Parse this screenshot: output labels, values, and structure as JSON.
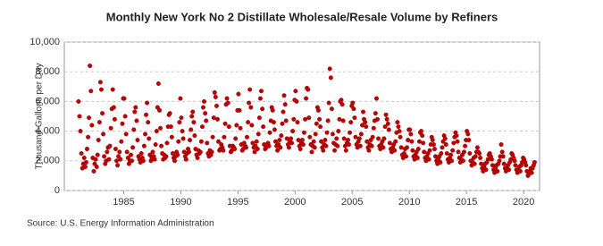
{
  "chart_data": {
    "type": "scatter",
    "title": "Monthly New York No 2 Distillate Wholesale/Resale Volume by Refiners",
    "y_label": "Thousand Gallons per Day",
    "source": "Source: U.S. Energy Information Administration",
    "color": "#c00000",
    "xlim": [
      1979.8,
      2021.4
    ],
    "xticks": [
      1985,
      1990,
      1995,
      2000,
      2005,
      2010,
      2015,
      2020
    ],
    "ylim": [
      0,
      10000
    ],
    "yticks": [
      0,
      {
        "value": 2000,
        "label": "2,000"
      },
      {
        "value": 4000,
        "label": "4,000"
      },
      {
        "value": 6000,
        "label": "6,000"
      },
      {
        "value": 8000,
        "label": "8,000"
      },
      {
        "value": 10000,
        "label": "10,000"
      }
    ],
    "grid": true,
    "x": [
      1981.04,
      1981.13,
      1981.21,
      1981.29,
      1981.38,
      1981.46,
      1981.54,
      1981.63,
      1981.71,
      1981.79,
      1981.88,
      1981.96,
      1982.04,
      1982.13,
      1982.21,
      1982.29,
      1982.38,
      1982.46,
      1982.54,
      1982.63,
      1982.71,
      1982.79,
      1982.88,
      1982.96,
      1983.04,
      1983.13,
      1983.21,
      1983.29,
      1983.38,
      1983.46,
      1983.54,
      1983.63,
      1983.71,
      1983.79,
      1983.88,
      1983.96,
      1984.04,
      1984.13,
      1984.21,
      1984.29,
      1984.38,
      1984.46,
      1984.54,
      1984.63,
      1984.71,
      1984.79,
      1984.88,
      1984.96,
      1985.04,
      1985.13,
      1985.21,
      1985.29,
      1985.38,
      1985.46,
      1985.54,
      1985.63,
      1985.71,
      1985.79,
      1985.88,
      1985.96,
      1986.04,
      1986.13,
      1986.21,
      1986.29,
      1986.38,
      1986.46,
      1986.54,
      1986.63,
      1986.71,
      1986.79,
      1986.88,
      1986.96,
      1987.04,
      1987.13,
      1987.21,
      1987.29,
      1987.38,
      1987.46,
      1987.54,
      1987.63,
      1987.71,
      1987.79,
      1987.88,
      1987.96,
      1988.04,
      1988.13,
      1988.21,
      1988.29,
      1988.38,
      1988.46,
      1988.54,
      1988.63,
      1988.71,
      1988.79,
      1988.88,
      1988.96,
      1989.04,
      1989.13,
      1989.21,
      1989.29,
      1989.38,
      1989.46,
      1989.54,
      1989.63,
      1989.71,
      1989.79,
      1989.88,
      1989.96,
      1990.04,
      1990.13,
      1990.21,
      1990.29,
      1990.38,
      1990.46,
      1990.54,
      1990.63,
      1990.71,
      1990.79,
      1990.88,
      1990.96,
      1991.04,
      1991.13,
      1991.21,
      1991.29,
      1991.38,
      1991.46,
      1991.54,
      1991.63,
      1991.71,
      1991.79,
      1991.88,
      1991.96,
      1992.04,
      1992.13,
      1992.21,
      1992.29,
      1992.38,
      1992.46,
      1992.54,
      1992.63,
      1992.71,
      1992.79,
      1992.88,
      1992.96,
      1993.04,
      1993.13,
      1993.21,
      1993.29,
      1993.38,
      1993.46,
      1993.54,
      1993.63,
      1993.71,
      1993.79,
      1993.88,
      1993.96,
      1994.04,
      1994.13,
      1994.21,
      1994.29,
      1994.38,
      1994.46,
      1994.54,
      1994.63,
      1994.71,
      1994.79,
      1994.88,
      1994.96,
      1995.04,
      1995.13,
      1995.21,
      1995.29,
      1995.38,
      1995.46,
      1995.54,
      1995.63,
      1995.71,
      1995.79,
      1995.88,
      1995.96,
      1996.04,
      1996.13,
      1996.21,
      1996.29,
      1996.38,
      1996.46,
      1996.54,
      1996.63,
      1996.71,
      1996.79,
      1996.88,
      1996.96,
      1997.04,
      1997.13,
      1997.21,
      1997.29,
      1997.38,
      1997.46,
      1997.54,
      1997.63,
      1997.71,
      1997.79,
      1997.88,
      1997.96,
      1998.04,
      1998.13,
      1998.21,
      1998.29,
      1998.38,
      1998.46,
      1998.54,
      1998.63,
      1998.71,
      1998.79,
      1998.88,
      1998.96,
      1999.04,
      1999.13,
      1999.21,
      1999.29,
      1999.38,
      1999.46,
      1999.54,
      1999.63,
      1999.71,
      1999.79,
      1999.88,
      1999.96,
      2000.04,
      2000.13,
      2000.21,
      2000.29,
      2000.38,
      2000.46,
      2000.54,
      2000.63,
      2000.71,
      2000.79,
      2000.88,
      2000.96,
      2001.04,
      2001.13,
      2001.21,
      2001.29,
      2001.38,
      2001.46,
      2001.54,
      2001.63,
      2001.71,
      2001.79,
      2001.88,
      2001.96,
      2002.04,
      2002.13,
      2002.21,
      2002.29,
      2002.38,
      2002.46,
      2002.54,
      2002.63,
      2002.71,
      2002.79,
      2002.88,
      2002.96,
      2003.04,
      2003.13,
      2003.21,
      2003.29,
      2003.38,
      2003.46,
      2003.54,
      2003.63,
      2003.71,
      2003.79,
      2003.88,
      2003.96,
      2004.04,
      2004.13,
      2004.21,
      2004.29,
      2004.38,
      2004.46,
      2004.54,
      2004.63,
      2004.71,
      2004.79,
      2004.88,
      2004.96,
      2005.04,
      2005.13,
      2005.21,
      2005.29,
      2005.38,
      2005.46,
      2005.54,
      2005.63,
      2005.71,
      2005.79,
      2005.88,
      2005.96,
      2006.04,
      2006.13,
      2006.21,
      2006.29,
      2006.38,
      2006.46,
      2006.54,
      2006.63,
      2006.71,
      2006.79,
      2006.88,
      2006.96,
      2007.04,
      2007.13,
      2007.21,
      2007.29,
      2007.38,
      2007.46,
      2007.54,
      2007.63,
      2007.71,
      2007.79,
      2007.88,
      2007.96,
      2008.04,
      2008.13,
      2008.21,
      2008.29,
      2008.38,
      2008.46,
      2008.54,
      2008.63,
      2008.71,
      2008.79,
      2008.88,
      2008.96,
      2009.04,
      2009.13,
      2009.21,
      2009.29,
      2009.38,
      2009.46,
      2009.54,
      2009.63,
      2009.71,
      2009.79,
      2009.88,
      2009.96,
      2010.04,
      2010.13,
      2010.21,
      2010.29,
      2010.38,
      2010.46,
      2010.54,
      2010.63,
      2010.71,
      2010.79,
      2010.88,
      2010.96,
      2011.04,
      2011.13,
      2011.21,
      2011.29,
      2011.38,
      2011.46,
      2011.54,
      2011.63,
      2011.71,
      2011.79,
      2011.88,
      2011.96,
      2012.04,
      2012.13,
      2012.21,
      2012.29,
      2012.38,
      2012.46,
      2012.54,
      2012.63,
      2012.71,
      2012.79,
      2012.88,
      2012.96,
      2013.04,
      2013.13,
      2013.21,
      2013.29,
      2013.38,
      2013.46,
      2013.54,
      2013.63,
      2013.71,
      2013.79,
      2013.88,
      2013.96,
      2014.04,
      2014.13,
      2014.21,
      2014.29,
      2014.38,
      2014.46,
      2014.54,
      2014.63,
      2014.71,
      2014.79,
      2014.88,
      2014.96,
      2015.04,
      2015.13,
      2015.21,
      2015.29,
      2015.38,
      2015.46,
      2015.54,
      2015.63,
      2015.71,
      2015.79,
      2015.88,
      2015.96,
      2016.04,
      2016.13,
      2016.21,
      2016.29,
      2016.38,
      2016.46,
      2016.54,
      2016.63,
      2016.71,
      2016.79,
      2016.88,
      2016.96,
      2017.04,
      2017.13,
      2017.21,
      2017.29,
      2017.38,
      2017.46,
      2017.54,
      2017.63,
      2017.71,
      2017.79,
      2017.88,
      2017.96,
      2018.04,
      2018.13,
      2018.21,
      2018.29,
      2018.38,
      2018.46,
      2018.54,
      2018.63,
      2018.71,
      2018.79,
      2018.88,
      2018.96,
      2019.04,
      2019.13,
      2019.21,
      2019.29,
      2019.38,
      2019.46,
      2019.54,
      2019.63,
      2019.71,
      2019.79,
      2019.88,
      2019.96,
      2020.04,
      2020.13,
      2020.21,
      2020.29,
      2020.38,
      2020.46,
      2020.54,
      2020.63,
      2020.71,
      2020.79,
      2020.88,
      2020.96
    ],
    "values": [
      6000,
      5000,
      4000,
      2500,
      1500,
      1800,
      2200,
      1600,
      1900,
      2800,
      3600,
      4900,
      8400,
      6700,
      4400,
      2200,
      1300,
      1800,
      2100,
      1600,
      2400,
      3400,
      4600,
      7300,
      6800,
      5200,
      3800,
      2300,
      1800,
      2000,
      2600,
      2900,
      2100,
      3000,
      4200,
      5500,
      6800,
      5600,
      4800,
      2800,
      2000,
      1700,
      2300,
      2600,
      2100,
      3300,
      4500,
      6200,
      6200,
      5000,
      3800,
      2600,
      2200,
      1800,
      2000,
      2400,
      2000,
      2900,
      4100,
      5300,
      5600,
      4700,
      3400,
      2300,
      2100,
      1900,
      2500,
      2200,
      2000,
      3000,
      3800,
      5100,
      5900,
      4600,
      3500,
      2400,
      2000,
      2200,
      2600,
      2300,
      2100,
      3100,
      4000,
      5600,
      7200,
      5400,
      4200,
      3000,
      2500,
      2100,
      2400,
      2200,
      2300,
      3200,
      4300,
      5100,
      5200,
      4300,
      3600,
      2500,
      2200,
      2000,
      2300,
      2600,
      2400,
      3300,
      4600,
      6200,
      4900,
      4000,
      3500,
      2600,
      2300,
      2100,
      2500,
      2800,
      2600,
      3400,
      4100,
      5000,
      5300,
      4600,
      3700,
      2800,
      2400,
      2200,
      2700,
      2500,
      2600,
      3300,
      4300,
      5600,
      6000,
      5200,
      4700,
      3200,
      2500,
      2300,
      2700,
      2400,
      2600,
      3600,
      4900,
      6600,
      6300,
      5700,
      4800,
      3300,
      2700,
      2800,
      3100,
      2900,
      2700,
      3600,
      4500,
      5800,
      6200,
      5900,
      4300,
      3000,
      2600,
      2700,
      3000,
      2900,
      2800,
      3500,
      4400,
      5400,
      6500,
      5400,
      4200,
      3100,
      2700,
      2800,
      3200,
      3000,
      2900,
      3600,
      4600,
      5900,
      6800,
      5600,
      4400,
      3200,
      2900,
      2600,
      3000,
      3300,
      2800,
      3800,
      4900,
      6200,
      6700,
      5500,
      4300,
      3100,
      2800,
      2900,
      3100,
      3200,
      3000,
      3900,
      4700,
      5600,
      5400,
      4600,
      4100,
      3300,
      3000,
      2700,
      3100,
      3400,
      2900,
      3700,
      4500,
      5300,
      6400,
      5800,
      4700,
      3500,
      3100,
      2900,
      3300,
      3500,
      3200,
      4000,
      4800,
      6100,
      6700,
      6000,
      4600,
      3400,
      3000,
      2800,
      3200,
      3400,
      3100,
      3900,
      4800,
      6200,
      6900,
      6800,
      4900,
      3600,
      3100,
      2600,
      3000,
      3300,
      2900,
      3800,
      4500,
      5600,
      5400,
      4800,
      4300,
      3300,
      2900,
      2700,
      3100,
      3400,
      3000,
      3900,
      4700,
      5900,
      8200,
      7600,
      5500,
      3800,
      3200,
      2700,
      3100,
      3500,
      3000,
      4000,
      4800,
      6000,
      6100,
      5800,
      4700,
      3500,
      3000,
      2700,
      3200,
      3400,
      3100,
      3900,
      4600,
      5700,
      5900,
      5500,
      4900,
      3600,
      3100,
      2900,
      3300,
      3500,
      3000,
      3800,
      4400,
      5300,
      4800,
      4600,
      4300,
      3300,
      2900,
      2700,
      3100,
      3400,
      3000,
      3600,
      4200,
      4700,
      5200,
      6200,
      4800,
      3500,
      3000,
      2800,
      3100,
      3300,
      2900,
      3500,
      4300,
      5100,
      4800,
      4500,
      4100,
      3200,
      2800,
      2600,
      2900,
      3100,
      2700,
      3300,
      3900,
      4600,
      4300,
      4000,
      3600,
      2900,
      2400,
      2200,
      2500,
      2800,
      2300,
      2900,
      3400,
      4100,
      4100,
      3800,
      3300,
      2700,
      2300,
      2100,
      2400,
      2600,
      2200,
      2800,
      3300,
      3900,
      4000,
      3700,
      3200,
      2600,
      2200,
      2000,
      2300,
      2500,
      2100,
      2700,
      3100,
      3600,
      3400,
      3100,
      2800,
      2300,
      2000,
      1800,
      2100,
      2300,
      1900,
      2500,
      2900,
      3300,
      3700,
      3500,
      3100,
      2500,
      2100,
      1900,
      2200,
      2400,
      2000,
      2700,
      3200,
      3600,
      3900,
      3700,
      3300,
      2600,
      2200,
      1900,
      2100,
      2400,
      2000,
      2600,
      3000,
      3400,
      4000,
      3800,
      3400,
      2500,
      2000,
      1700,
      1900,
      2200,
      1800,
      2300,
      2600,
      2900,
      2600,
      2500,
      2200,
      1800,
      1500,
      1300,
      1600,
      1800,
      1400,
      1900,
      2100,
      2400,
      2500,
      2300,
      2100,
      1700,
      1400,
      1200,
      1500,
      1700,
      1300,
      1800,
      2000,
      2300,
      3100,
      2600,
      2300,
      1800,
      1500,
      1300,
      1500,
      1700,
      1400,
      1900,
      2100,
      2500,
      2400,
      2200,
      2000,
      1700,
      1400,
      1200,
      1400,
      1600,
      1300,
      1700,
      1900,
      2200,
      2100,
      1900,
      1700,
      1300,
      1000,
      1100,
      1300,
      1500,
      1200,
      1500,
      1700,
      1900
    ]
  }
}
